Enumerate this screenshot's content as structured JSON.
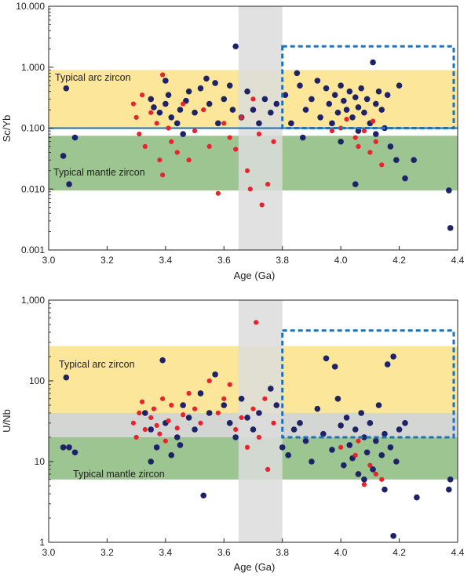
{
  "colors": {
    "arc_band": "#fbe69a",
    "arc_band_edge": "#fff4c8",
    "mantle_band": "#9dc591",
    "overlap_band": "#d4d6d4",
    "time_band": "#dcdcdc",
    "box_outline": "#1d72b8",
    "hline": "#1d6fb5",
    "dot_navy": "#1e2268",
    "dot_red": "#e8232d"
  },
  "chart_data": [
    {
      "type": "scatter",
      "panel": "top",
      "xlabel": "Age (Ga)",
      "ylabel": "Sc/Yb",
      "xlim": [
        3.0,
        4.4
      ],
      "ylim": [
        0.001,
        10.0
      ],
      "yscale": "log",
      "xticks": [
        "3.0",
        "3.2",
        "3.4",
        "3.6",
        "3.8",
        "4.0",
        "4.2",
        "4.4"
      ],
      "yticks": [
        "10.000",
        "1.000",
        "0.100",
        "0.010",
        "0.001"
      ],
      "arc_band": [
        0.1,
        0.9
      ],
      "mantle_band": [
        0.0095,
        0.075
      ],
      "time_band": [
        3.65,
        3.8
      ],
      "hline": 0.1,
      "dashed_box": {
        "x": [
          3.8,
          4.4
        ],
        "y": [
          0.1,
          2.2
        ]
      },
      "annotations": [
        "Typical arc zircon",
        "Typical mantle zircon"
      ],
      "series": [
        {
          "name": "Navy",
          "color": "#1e2268",
          "points": [
            [
              3.06,
              0.45
            ],
            [
              3.05,
              0.035
            ],
            [
              3.07,
              0.012
            ],
            [
              3.09,
              0.07
            ],
            [
              3.64,
              2.2
            ],
            [
              3.35,
              0.3
            ],
            [
              3.36,
              0.22
            ],
            [
              3.38,
              0.18
            ],
            [
              3.4,
              0.25
            ],
            [
              3.41,
              0.35
            ],
            [
              3.42,
              0.15
            ],
            [
              3.44,
              0.12
            ],
            [
              3.45,
              0.2
            ],
            [
              3.47,
              0.28
            ],
            [
              3.48,
              0.4
            ],
            [
              3.5,
              0.18
            ],
            [
              3.52,
              0.45
            ],
            [
              3.54,
              0.65
            ],
            [
              3.55,
              0.25
            ],
            [
              3.57,
              0.55
            ],
            [
              3.58,
              0.12
            ],
            [
              3.6,
              0.3
            ],
            [
              3.62,
              0.5
            ],
            [
              3.63,
              0.2
            ],
            [
              3.66,
              0.15
            ],
            [
              3.68,
              0.4
            ],
            [
              3.7,
              0.2
            ],
            [
              3.72,
              0.12
            ],
            [
              3.74,
              0.3
            ],
            [
              3.76,
              0.18
            ],
            [
              3.78,
              0.25
            ],
            [
              3.81,
              0.35
            ],
            [
              3.83,
              0.12
            ],
            [
              3.85,
              0.8
            ],
            [
              3.86,
              0.5
            ],
            [
              3.88,
              0.2
            ],
            [
              3.9,
              0.3
            ],
            [
              3.92,
              0.6
            ],
            [
              3.93,
              0.15
            ],
            [
              3.95,
              0.45
            ],
            [
              3.96,
              0.25
            ],
            [
              3.98,
              0.35
            ],
            [
              3.99,
              0.18
            ],
            [
              4.0,
              0.5
            ],
            [
              4.01,
              0.28
            ],
            [
              4.02,
              0.2
            ],
            [
              4.03,
              0.4
            ],
            [
              4.04,
              0.15
            ],
            [
              4.05,
              0.32
            ],
            [
              4.06,
              0.22
            ],
            [
              4.07,
              0.45
            ],
            [
              4.08,
              0.18
            ],
            [
              4.09,
              0.3
            ],
            [
              4.1,
              0.12
            ],
            [
              4.11,
              1.2
            ],
            [
              4.12,
              0.25
            ],
            [
              4.13,
              0.4
            ],
            [
              4.14,
              0.2
            ],
            [
              4.15,
              0.1
            ],
            [
              4.16,
              0.35
            ],
            [
              4.17,
              0.05
            ],
            [
              4.19,
              0.03
            ],
            [
              4.2,
              0.5
            ],
            [
              4.22,
              0.015
            ],
            [
              4.25,
              0.03
            ],
            [
              4.37,
              0.0095
            ],
            [
              4.375,
              0.0023
            ],
            [
              3.97,
              0.12
            ],
            [
              4.06,
              0.09
            ],
            [
              4.12,
              0.08
            ],
            [
              3.87,
              0.07
            ],
            [
              4.0,
              0.06
            ],
            [
              4.05,
              0.012
            ],
            [
              3.4,
              0.6
            ],
            [
              3.46,
              0.08
            ]
          ]
        },
        {
          "name": "Red",
          "color": "#e8232d",
          "points": [
            [
              3.29,
              0.25
            ],
            [
              3.3,
              0.15
            ],
            [
              3.31,
              0.08
            ],
            [
              3.32,
              0.35
            ],
            [
              3.33,
              0.05
            ],
            [
              3.35,
              0.18
            ],
            [
              3.37,
              0.12
            ],
            [
              3.38,
              0.03
            ],
            [
              3.39,
              0.017
            ],
            [
              3.39,
              0.75
            ],
            [
              3.41,
              0.1
            ],
            [
              3.42,
              0.06
            ],
            [
              3.44,
              0.04
            ],
            [
              3.46,
              0.25
            ],
            [
              3.48,
              0.03
            ],
            [
              3.5,
              0.09
            ],
            [
              3.53,
              0.2
            ],
            [
              3.55,
              0.05
            ],
            [
              3.58,
              0.0085
            ],
            [
              3.6,
              0.12
            ],
            [
              3.62,
              0.07
            ],
            [
              3.64,
              0.045
            ],
            [
              3.66,
              0.15
            ],
            [
              3.68,
              0.02
            ],
            [
              3.69,
              0.01
            ],
            [
              3.7,
              0.3
            ],
            [
              3.72,
              0.08
            ],
            [
              3.73,
              0.0055
            ],
            [
              3.75,
              0.012
            ],
            [
              3.77,
              0.06
            ],
            [
              4.05,
              0.07
            ],
            [
              4.08,
              0.09
            ],
            [
              4.1,
              0.04
            ],
            [
              4.12,
              0.06
            ],
            [
              4.14,
              0.025
            ],
            [
              4.0,
              0.1
            ],
            [
              4.02,
              0.14
            ],
            [
              4.11,
              0.13
            ],
            [
              3.97,
              0.09
            ],
            [
              4.06,
              0.05
            ]
          ]
        }
      ]
    },
    {
      "type": "scatter",
      "panel": "bottom",
      "xlabel": "Age (Ga)",
      "ylabel": "U/Nb",
      "xlim": [
        3.0,
        4.4
      ],
      "ylim": [
        1,
        1000
      ],
      "yscale": "log",
      "xticks": [
        "3.0",
        "3.2",
        "3.4",
        "3.6",
        "3.8",
        "4.0",
        "4.2",
        "4.4"
      ],
      "yticks": [
        "1,000",
        "100",
        "10",
        "1"
      ],
      "arc_band": [
        40,
        270
      ],
      "mantle_band": [
        6,
        20
      ],
      "overlap_band": [
        20,
        40
      ],
      "time_band": [
        3.65,
        3.8
      ],
      "dashed_box": {
        "x": [
          3.8,
          4.4
        ],
        "y": [
          20,
          420
        ]
      },
      "annotations": [
        "Typical arc zircon",
        "Typical mantle zircon"
      ],
      "series": [
        {
          "name": "Navy",
          "color": "#1e2268",
          "points": [
            [
              3.05,
              15
            ],
            [
              3.06,
              110
            ],
            [
              3.07,
              15
            ],
            [
              3.09,
              13
            ],
            [
              3.53,
              3.8
            ],
            [
              4.18,
              1.2
            ],
            [
              4.26,
              3.6
            ],
            [
              4.37,
              4.5
            ],
            [
              4.375,
              6
            ],
            [
              3.33,
              40
            ],
            [
              3.35,
              25
            ],
            [
              3.37,
              15
            ],
            [
              3.39,
              180
            ],
            [
              3.4,
              30
            ],
            [
              3.42,
              12
            ],
            [
              3.44,
              20
            ],
            [
              3.46,
              50
            ],
            [
              3.48,
              35
            ],
            [
              3.5,
              25
            ],
            [
              3.52,
              70
            ],
            [
              3.55,
              40
            ],
            [
              3.57,
              120
            ],
            [
              3.6,
              50
            ],
            [
              3.62,
              30
            ],
            [
              3.64,
              20
            ],
            [
              3.66,
              60
            ],
            [
              3.68,
              35
            ],
            [
              3.7,
              25
            ],
            [
              3.72,
              40
            ],
            [
              3.76,
              80
            ],
            [
              3.78,
              50
            ],
            [
              3.8,
              15
            ],
            [
              3.82,
              12
            ],
            [
              3.84,
              25
            ],
            [
              3.86,
              30
            ],
            [
              3.88,
              18
            ],
            [
              3.9,
              10
            ],
            [
              3.92,
              45
            ],
            [
              3.94,
              22
            ],
            [
              3.95,
              190
            ],
            [
              3.97,
              14
            ],
            [
              3.99,
              60
            ],
            [
              4.0,
              28
            ],
            [
              4.01,
              9
            ],
            [
              4.02,
              35
            ],
            [
              4.03,
              16
            ],
            [
              4.04,
              11
            ],
            [
              4.05,
              25
            ],
            [
              4.06,
              7
            ],
            [
              4.07,
              40
            ],
            [
              4.08,
              20
            ],
            [
              4.09,
              13
            ],
            [
              4.1,
              30
            ],
            [
              4.11,
              8
            ],
            [
              4.12,
              18
            ],
            [
              4.13,
              50
            ],
            [
              4.14,
              12
            ],
            [
              4.15,
              22
            ],
            [
              4.16,
              160
            ],
            [
              4.17,
              15
            ],
            [
              4.18,
              200
            ],
            [
              4.19,
              10
            ],
            [
              4.2,
              25
            ],
            [
              4.22,
              30
            ],
            [
              3.98,
              150
            ],
            [
              4.08,
              6
            ],
            [
              4.15,
              4.5
            ],
            [
              3.35,
              10
            ],
            [
              3.45,
              16
            ]
          ]
        },
        {
          "name": "Red",
          "color": "#e8232d",
          "points": [
            [
              3.29,
              30
            ],
            [
              3.3,
              20
            ],
            [
              3.31,
              40
            ],
            [
              3.32,
              55
            ],
            [
              3.33,
              25
            ],
            [
              3.35,
              35
            ],
            [
              3.36,
              45
            ],
            [
              3.37,
              28
            ],
            [
              3.38,
              22
            ],
            [
              3.39,
              60
            ],
            [
              3.4,
              18
            ],
            [
              3.41,
              32
            ],
            [
              3.42,
              50
            ],
            [
              3.44,
              26
            ],
            [
              3.46,
              38
            ],
            [
              3.48,
              70
            ],
            [
              3.5,
              45
            ],
            [
              3.52,
              30
            ],
            [
              3.55,
              100
            ],
            [
              3.58,
              40
            ],
            [
              3.6,
              60
            ],
            [
              3.62,
              90
            ],
            [
              3.64,
              25
            ],
            [
              3.66,
              35
            ],
            [
              3.68,
              15
            ],
            [
              3.7,
              45
            ],
            [
              3.71,
              530
            ],
            [
              3.72,
              20
            ],
            [
              3.74,
              60
            ],
            [
              3.75,
              8
            ],
            [
              3.77,
              30
            ],
            [
              4.05,
              12
            ],
            [
              4.08,
              5.2
            ],
            [
              4.1,
              9
            ],
            [
              4.12,
              7
            ],
            [
              4.14,
              6
            ],
            [
              4.0,
              15
            ],
            [
              4.06,
              18
            ]
          ]
        }
      ]
    }
  ]
}
